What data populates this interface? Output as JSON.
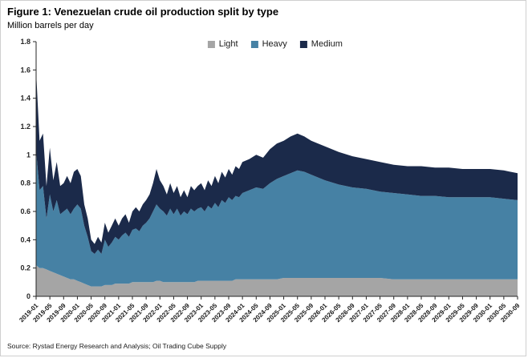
{
  "figure": {
    "title": "Figure 1: Venezuelan crude oil production split by type",
    "subtitle": "Million barrels per day",
    "source": "Source: Rystad Energy Research and Analysis; Oil Trading Cube Supply"
  },
  "chart_data": {
    "type": "area",
    "stacked": true,
    "title": "Figure 1: Venezuelan crude oil production split by type",
    "xlabel": "",
    "ylabel": "Million barrels per day",
    "ylim": [
      0,
      1.8
    ],
    "grid": false,
    "legend_position": "top-center",
    "yticks": [
      "0",
      "0.2",
      "0.4",
      "0.6",
      "0.8",
      "1",
      "1.2",
      "1.4",
      "1.6",
      "1.8"
    ],
    "xticks": [
      "2019-01",
      "2019-05",
      "2019-09",
      "2020-01",
      "2020-05",
      "2020-09",
      "2021-01",
      "2021-05",
      "2021-09",
      "2022-01",
      "2022-05",
      "2022-09",
      "2023-01",
      "2023-05",
      "2023-09",
      "2024-01",
      "2024-05",
      "2024-09",
      "2025-01",
      "2025-05",
      "2025-09",
      "2026-01",
      "2026-05",
      "2026-09",
      "2027-01",
      "2027-05",
      "2027-09",
      "2028-01",
      "2028-05",
      "2028-09",
      "2029-01",
      "2029-05",
      "2029-09",
      "2030-01",
      "2030-05",
      "2030-09"
    ],
    "x": [
      "2019-01",
      "2019-02",
      "2019-03",
      "2019-04",
      "2019-05",
      "2019-06",
      "2019-07",
      "2019-08",
      "2019-09",
      "2019-10",
      "2019-11",
      "2019-12",
      "2020-01",
      "2020-02",
      "2020-03",
      "2020-04",
      "2020-05",
      "2020-06",
      "2020-07",
      "2020-08",
      "2020-09",
      "2020-10",
      "2020-11",
      "2020-12",
      "2021-01",
      "2021-02",
      "2021-03",
      "2021-04",
      "2021-05",
      "2021-06",
      "2021-07",
      "2021-08",
      "2021-09",
      "2021-10",
      "2021-11",
      "2021-12",
      "2022-01",
      "2022-02",
      "2022-03",
      "2022-04",
      "2022-05",
      "2022-06",
      "2022-07",
      "2022-08",
      "2022-09",
      "2022-10",
      "2022-11",
      "2022-12",
      "2023-01",
      "2023-02",
      "2023-03",
      "2023-04",
      "2023-05",
      "2023-06",
      "2023-07",
      "2023-08",
      "2023-09",
      "2023-10",
      "2023-11",
      "2023-12",
      "2024-01",
      "2024-03",
      "2024-05",
      "2024-07",
      "2024-09",
      "2024-11",
      "2025-01",
      "2025-03",
      "2025-05",
      "2025-07",
      "2025-09",
      "2025-11",
      "2026-01",
      "2026-05",
      "2026-09",
      "2027-01",
      "2027-05",
      "2027-09",
      "2028-01",
      "2028-05",
      "2028-09",
      "2029-01",
      "2029-05",
      "2029-09",
      "2030-01",
      "2030-05",
      "2030-09"
    ],
    "series": [
      {
        "name": "Light",
        "color": "#a5a5a5",
        "values": [
          0.22,
          0.2,
          0.2,
          0.19,
          0.18,
          0.17,
          0.16,
          0.15,
          0.14,
          0.13,
          0.12,
          0.12,
          0.11,
          0.1,
          0.09,
          0.08,
          0.07,
          0.07,
          0.07,
          0.07,
          0.08,
          0.08,
          0.08,
          0.09,
          0.09,
          0.09,
          0.09,
          0.09,
          0.1,
          0.1,
          0.1,
          0.1,
          0.1,
          0.1,
          0.1,
          0.11,
          0.11,
          0.1,
          0.1,
          0.1,
          0.1,
          0.1,
          0.1,
          0.1,
          0.1,
          0.1,
          0.1,
          0.11,
          0.11,
          0.11,
          0.11,
          0.11,
          0.11,
          0.11,
          0.11,
          0.11,
          0.11,
          0.11,
          0.12,
          0.12,
          0.12,
          0.12,
          0.12,
          0.12,
          0.12,
          0.12,
          0.13,
          0.13,
          0.13,
          0.13,
          0.13,
          0.13,
          0.13,
          0.13,
          0.13,
          0.13,
          0.13,
          0.12,
          0.12,
          0.12,
          0.12,
          0.12,
          0.12,
          0.12,
          0.12,
          0.12,
          0.12
        ]
      },
      {
        "name": "Heavy",
        "color": "#4681a4",
        "values": [
          0.81,
          0.55,
          0.58,
          0.36,
          0.54,
          0.43,
          0.52,
          0.43,
          0.46,
          0.49,
          0.46,
          0.5,
          0.54,
          0.52,
          0.41,
          0.34,
          0.25,
          0.23,
          0.26,
          0.23,
          0.32,
          0.27,
          0.3,
          0.33,
          0.31,
          0.34,
          0.36,
          0.33,
          0.37,
          0.38,
          0.36,
          0.4,
          0.42,
          0.45,
          0.5,
          0.54,
          0.51,
          0.5,
          0.47,
          0.52,
          0.48,
          0.52,
          0.47,
          0.5,
          0.48,
          0.52,
          0.5,
          0.51,
          0.52,
          0.49,
          0.53,
          0.51,
          0.55,
          0.52,
          0.57,
          0.55,
          0.59,
          0.57,
          0.59,
          0.58,
          0.61,
          0.63,
          0.65,
          0.64,
          0.68,
          0.71,
          0.72,
          0.74,
          0.76,
          0.75,
          0.73,
          0.71,
          0.69,
          0.66,
          0.64,
          0.63,
          0.61,
          0.61,
          0.6,
          0.59,
          0.59,
          0.58,
          0.58,
          0.58,
          0.58,
          0.57,
          0.56
        ]
      },
      {
        "name": "Medium",
        "color": "#1b2a4a",
        "values": [
          0.56,
          0.35,
          0.37,
          0.23,
          0.33,
          0.22,
          0.27,
          0.2,
          0.2,
          0.23,
          0.22,
          0.26,
          0.25,
          0.23,
          0.15,
          0.13,
          0.08,
          0.07,
          0.09,
          0.08,
          0.12,
          0.1,
          0.12,
          0.13,
          0.1,
          0.12,
          0.13,
          0.1,
          0.13,
          0.15,
          0.14,
          0.15,
          0.16,
          0.17,
          0.2,
          0.25,
          0.2,
          0.18,
          0.15,
          0.18,
          0.15,
          0.16,
          0.13,
          0.15,
          0.12,
          0.16,
          0.15,
          0.16,
          0.17,
          0.15,
          0.18,
          0.16,
          0.19,
          0.17,
          0.2,
          0.18,
          0.2,
          0.18,
          0.21,
          0.2,
          0.22,
          0.22,
          0.23,
          0.22,
          0.24,
          0.25,
          0.25,
          0.26,
          0.26,
          0.25,
          0.24,
          0.24,
          0.24,
          0.23,
          0.22,
          0.21,
          0.21,
          0.2,
          0.2,
          0.21,
          0.2,
          0.21,
          0.2,
          0.2,
          0.2,
          0.2,
          0.19
        ]
      }
    ]
  }
}
